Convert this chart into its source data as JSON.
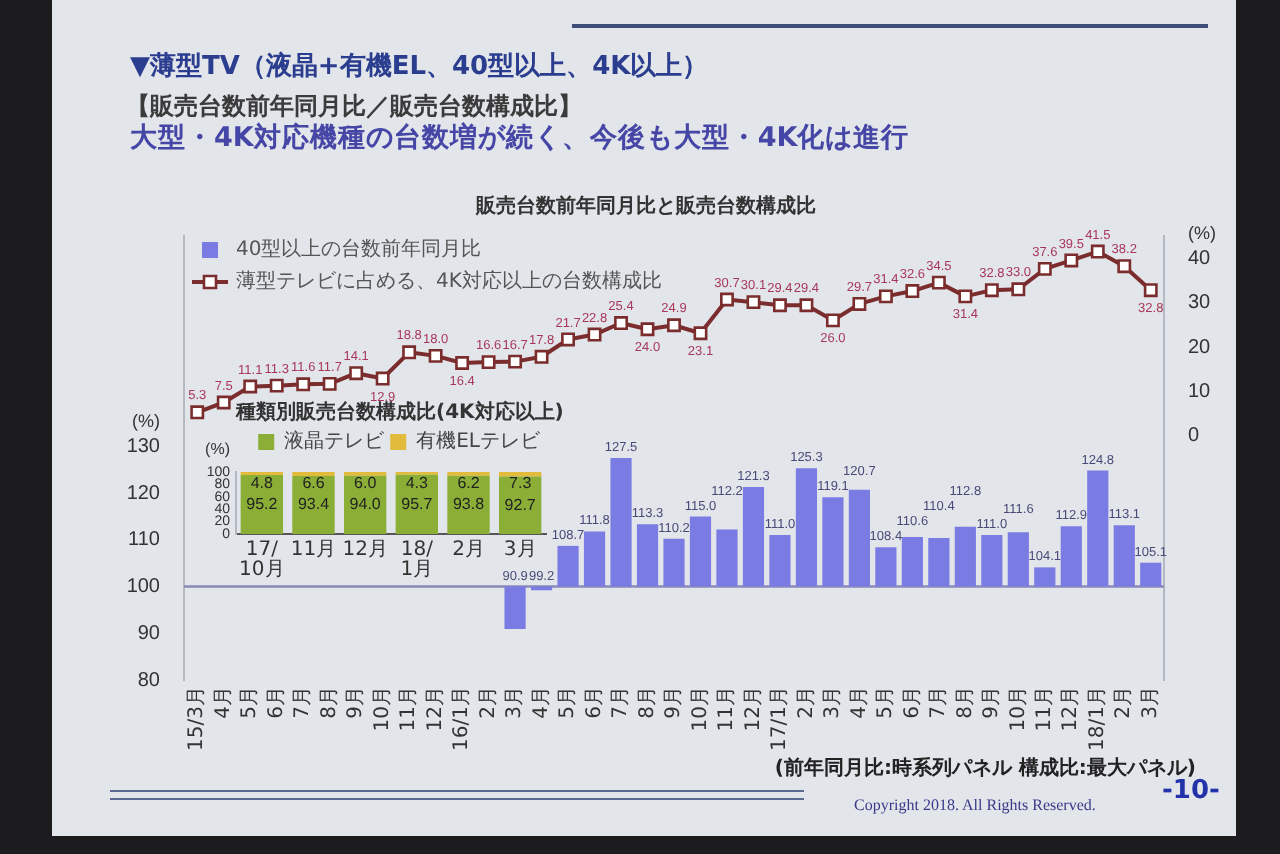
{
  "chart_data": [
    {
      "type": "bar",
      "title": "▼薄型TV（液晶+有機EL、40型以上、4K以上）",
      "subtitle": "【販売台数前年同月比／販売台数構成比】",
      "ylabel": "(%)",
      "y2label": "(%)",
      "annotations": [
        "大型・4K対応機種の台数増が続く、今後も大型・4K化は進行",
        "販売台数前年同月比と販売台数構成比",
        "(前年同月比:時系列パネル 構成比:最大パネル)",
        "Copyright 2018. All Rights Reserved.",
        "-10-"
      ],
      "categories": [
        "15/3月",
        "4月",
        "5月",
        "6月",
        "7月",
        "8月",
        "9月",
        "10月",
        "11月",
        "12月",
        "16/1月",
        "2月",
        "3月",
        "4月",
        "5月",
        "6月",
        "7月",
        "8月",
        "9月",
        "10月",
        "11月",
        "12月",
        "17/1月",
        "2月",
        "3月",
        "4月",
        "5月",
        "6月",
        "7月",
        "8月",
        "9月",
        "10月",
        "11月",
        "12月",
        "18/1月",
        "2月",
        "3月"
      ],
      "series": [
        {
          "name": "40型以上の台数前年同月比",
          "type": "bar",
          "color": "#7b7be4",
          "base": [
            null,
            null,
            null,
            null,
            null,
            null,
            null,
            null,
            null,
            null,
            null,
            null,
            100,
            100,
            100,
            100,
            100,
            100,
            100,
            100,
            100,
            100,
            100,
            100,
            100,
            100,
            100,
            100,
            100,
            100,
            100,
            100,
            100,
            100,
            100,
            100,
            100
          ],
          "values": [
            null,
            null,
            null,
            null,
            null,
            null,
            null,
            null,
            null,
            null,
            null,
            null,
            -9.1,
            -0.8,
            8.7,
            11.8,
            27.5,
            13.3,
            10.2,
            15.0,
            12.2,
            21.3,
            11.0,
            25.3,
            19.1,
            20.7,
            8.4,
            10.6,
            10.4,
            12.8,
            11.0,
            11.6,
            4.1,
            12.9,
            24.8,
            13.1,
            5.1
          ],
          "value_labels": [
            null,
            null,
            null,
            null,
            null,
            null,
            null,
            null,
            null,
            null,
            null,
            null,
            "90.9",
            "99.2",
            "108.7",
            "111.8",
            "127.5",
            "113.3",
            "110.2",
            "115.0",
            "112.2",
            "121.3",
            "111.0",
            "125.3",
            "119.1",
            "120.7",
            "108.4",
            "110.6",
            "110.4",
            "112.8",
            "111.0",
            "111.6",
            "104.1",
            "112.9",
            "124.8",
            "113.1",
            "105.1"
          ]
        },
        {
          "name": "薄型テレビに占める、4K対応以上の台数構成比",
          "type": "line",
          "axis": "y2",
          "color": "#7b2d2d",
          "values": [
            5.3,
            7.5,
            11.1,
            11.3,
            11.6,
            11.7,
            14.1,
            12.9,
            18.8,
            18.0,
            16.4,
            16.6,
            16.7,
            17.8,
            21.7,
            22.8,
            25.4,
            24.0,
            24.9,
            23.1,
            30.7,
            30.1,
            29.4,
            29.4,
            26.0,
            29.7,
            31.4,
            32.6,
            34.5,
            31.4,
            32.8,
            33.0,
            37.6,
            39.5,
            41.5,
            38.2,
            32.8
          ],
          "value_labels": [
            "5.3",
            "7.5",
            "11.1",
            "11.3",
            "11.6",
            "11.7",
            "14.1",
            "12.9",
            "18.8",
            "18.0",
            "16.4",
            "16.6",
            "16.7",
            "17.8",
            "21.7",
            "22.8",
            "25.4",
            "24.0",
            "24.9",
            "23.1",
            "30.7",
            "30.1",
            "29.4",
            "29.4",
            "26.0",
            "29.7",
            "31.4",
            "32.6",
            "34.5",
            "31.4",
            "32.8",
            "33.0",
            "37.6",
            "39.5",
            "41.5",
            "38.2",
            "32.8"
          ]
        }
      ],
      "ylim": [
        80,
        175
      ],
      "yticks": [
        80,
        90,
        100,
        110,
        120,
        130
      ],
      "y2lim": [
        -55,
        45
      ],
      "y2ticks": [
        0,
        10,
        20,
        30,
        40
      ],
      "ref_lines": [
        {
          "axis": "y",
          "value": 100,
          "color": "#8a8ab8"
        }
      ],
      "legend": "top left",
      "marker": "square"
    },
    {
      "type": "bar",
      "stacked": true,
      "title": "種類別販売台数構成比(4K対応以上)",
      "ylabel": "(%)",
      "categories": [
        "17/10月",
        "11月",
        "12月",
        "18/1月",
        "2月",
        "3月"
      ],
      "series": [
        {
          "name": "液晶テレビ",
          "color": "#8aae36",
          "values": [
            95.2,
            93.4,
            94.0,
            95.7,
            93.8,
            92.7
          ],
          "value_labels": [
            "95.2",
            "93.4",
            "94.0",
            "95.7",
            "93.8",
            "92.7"
          ]
        },
        {
          "name": "有機ELテレビ",
          "color": "#e2bb3c",
          "values": [
            4.8,
            6.6,
            6.0,
            4.3,
            6.2,
            7.3
          ],
          "value_labels": [
            "4.8",
            "6.6",
            "6.0",
            "4.3",
            "6.2",
            "7.3"
          ]
        }
      ],
      "ylim": [
        0,
        100
      ],
      "yticks": [
        0,
        20,
        40,
        60,
        80,
        100
      ],
      "legend": "top"
    }
  ]
}
